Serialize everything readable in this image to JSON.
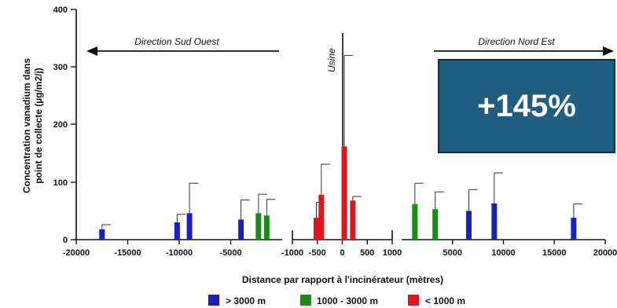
{
  "chart_data": {
    "type": "bar",
    "ylabel_lines": [
      "Concentration vanadium dans",
      "point de collecte (µg/m2/j)"
    ],
    "xlabel": "Distance par rapport à l'incinérateur (mètres)",
    "ylim": [
      0,
      400
    ],
    "y_ticks": [
      "0",
      "100",
      "200",
      "300",
      "400"
    ],
    "panels": [
      {
        "id": "left",
        "xlim": [
          -20000,
          0
        ],
        "tick_values": [
          -20000,
          -15000,
          -10000,
          -5000
        ],
        "tick_labels": [
          "-20000",
          "-15000",
          "-10000",
          "-5000"
        ]
      },
      {
        "id": "center",
        "xlim": [
          -1000,
          1000
        ],
        "tick_values": [
          -1000,
          -500,
          0,
          500,
          1000
        ],
        "tick_labels": [
          "-1000",
          "-500",
          "0",
          "500",
          "1000"
        ]
      },
      {
        "id": "right",
        "xlim": [
          0,
          20000
        ],
        "tick_values": [
          5000,
          10000,
          15000,
          20000
        ],
        "tick_labels": [
          "5000",
          "10000",
          "15000",
          "20000"
        ]
      }
    ],
    "series": [
      {
        "name": "> 3000 m",
        "color": "#1b1fbf"
      },
      {
        "name": "1000 - 3000 m",
        "color": "#1a8a1a"
      },
      {
        "name": "< 1000 m",
        "color": "#e0141a"
      }
    ],
    "bars": [
      {
        "panel": "left",
        "x": -17500,
        "value": 18,
        "error": 26,
        "series": 0
      },
      {
        "panel": "left",
        "x": -10200,
        "value": 30,
        "error": 44,
        "series": 0
      },
      {
        "panel": "left",
        "x": -9000,
        "value": 46,
        "error": 98,
        "series": 0
      },
      {
        "panel": "left",
        "x": -4000,
        "value": 35,
        "error": 69,
        "series": 0
      },
      {
        "panel": "left",
        "x": -2300,
        "value": 46,
        "error": 79,
        "series": 1
      },
      {
        "panel": "left",
        "x": -1500,
        "value": 42,
        "error": 70,
        "series": 1
      },
      {
        "panel": "center",
        "x": -520,
        "value": 38,
        "error": 65,
        "series": 2
      },
      {
        "panel": "center",
        "x": -420,
        "value": 78,
        "error": 131,
        "series": 2
      },
      {
        "panel": "center",
        "x": 40,
        "value": 162,
        "error": 320,
        "series": 2
      },
      {
        "panel": "center",
        "x": 210,
        "value": 68,
        "error": 75,
        "series": 2
      },
      {
        "panel": "right",
        "x": 1300,
        "value": 62,
        "error": 98,
        "series": 1
      },
      {
        "panel": "right",
        "x": 3300,
        "value": 53,
        "error": 83,
        "series": 1
      },
      {
        "panel": "right",
        "x": 6600,
        "value": 50,
        "error": 87,
        "series": 0
      },
      {
        "panel": "right",
        "x": 9100,
        "value": 63,
        "error": 116,
        "series": 0
      },
      {
        "panel": "right",
        "x": 16900,
        "value": 38,
        "error": 62,
        "series": 0
      }
    ],
    "annotations": {
      "direction_left": "Direction Sud Ouest",
      "direction_right": "Direction Nord Est",
      "usine": "Usine"
    }
  },
  "callout": {
    "text": "+145%",
    "bg_color": "#1e5e82"
  }
}
